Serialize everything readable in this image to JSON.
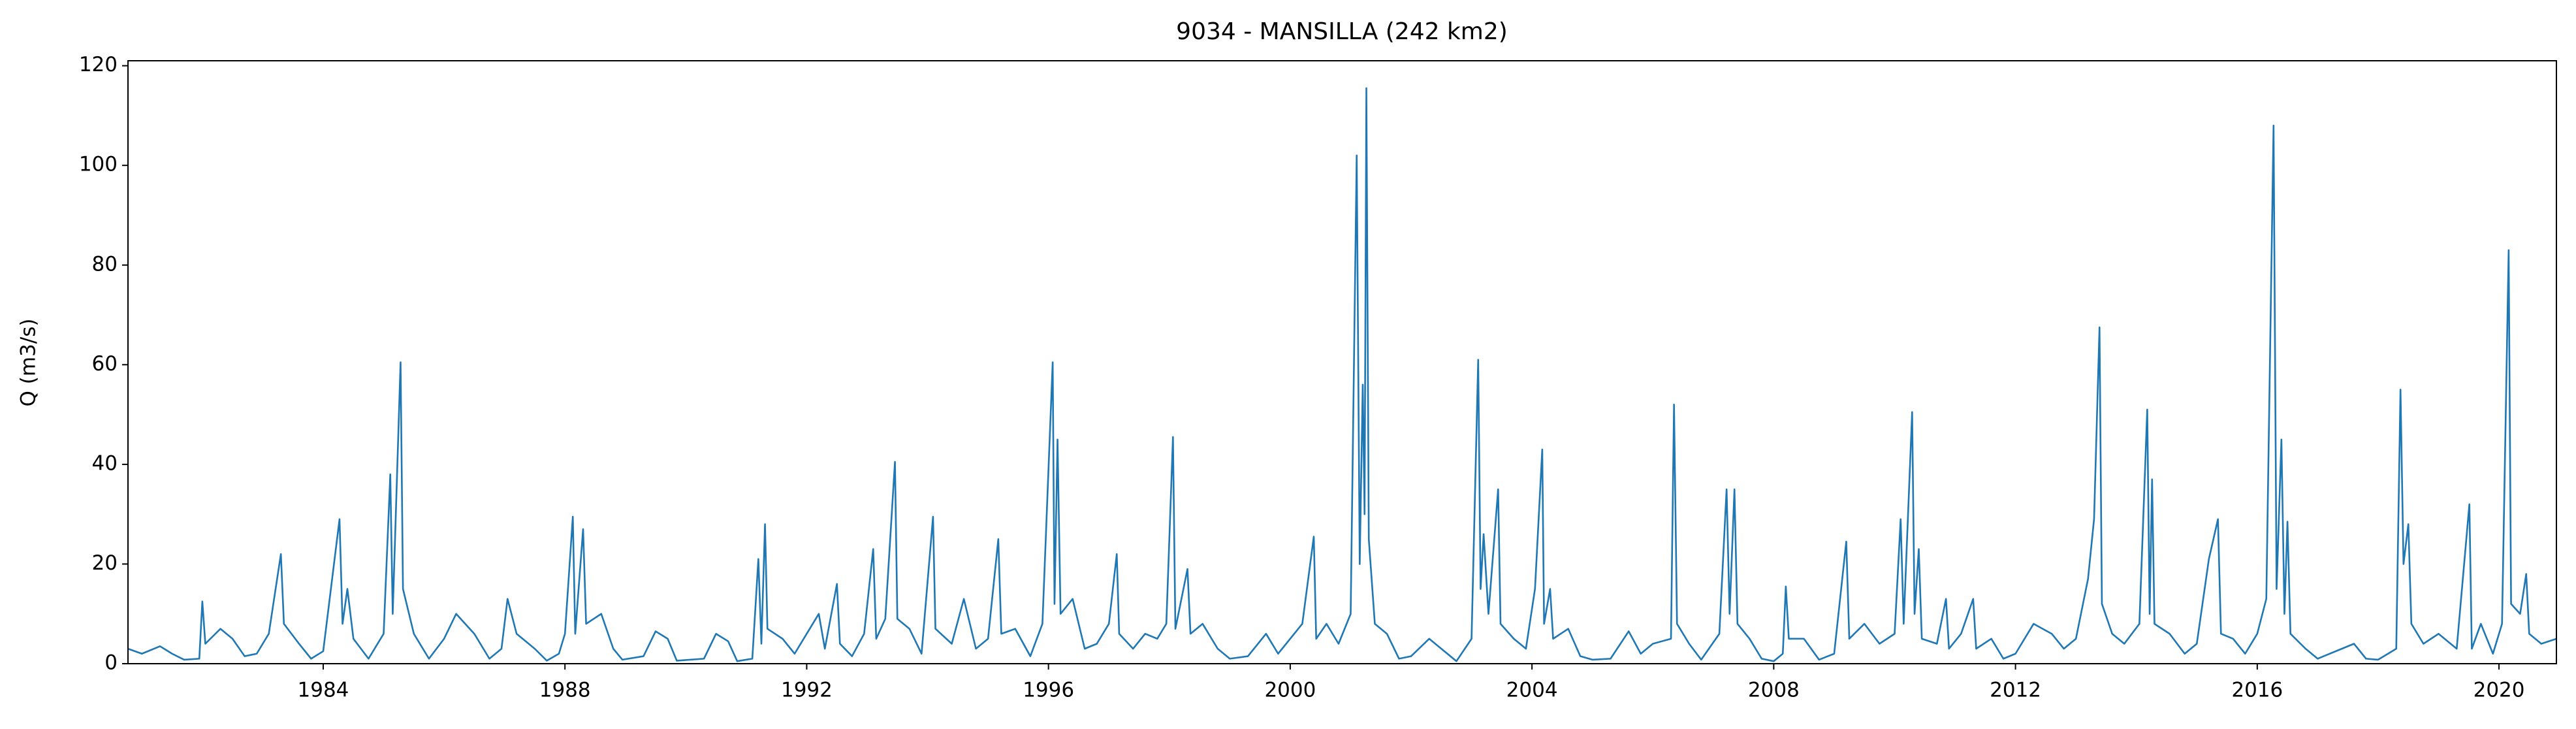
{
  "chart_data": {
    "type": "line",
    "title": "9034 - MANSILLA (242 km2)",
    "y_label": "Q (m3/s)",
    "color": "#1f77b4",
    "x": [
      1980.77,
      1981.0,
      1981.3,
      1981.5,
      1981.7,
      1981.95,
      1982.0,
      1982.05,
      1982.3,
      1982.5,
      1982.7,
      1982.9,
      1983.1,
      1983.3,
      1983.35,
      1983.6,
      1983.8,
      1984.0,
      1984.27,
      1984.32,
      1984.4,
      1984.5,
      1984.75,
      1985.0,
      1985.11,
      1985.15,
      1985.28,
      1985.32,
      1985.5,
      1985.75,
      1986.0,
      1986.2,
      1986.5,
      1986.75,
      1986.95,
      1987.05,
      1987.2,
      1987.5,
      1987.7,
      1987.9,
      1988.0,
      1988.13,
      1988.17,
      1988.3,
      1988.35,
      1988.6,
      1988.8,
      1988.95,
      1989.3,
      1989.5,
      1989.7,
      1989.85,
      1990.3,
      1990.5,
      1990.7,
      1990.85,
      1991.1,
      1991.2,
      1991.25,
      1991.31,
      1991.35,
      1991.6,
      1991.8,
      1992.0,
      1992.2,
      1992.3,
      1992.5,
      1992.55,
      1992.75,
      1992.95,
      1993.1,
      1993.15,
      1993.3,
      1993.46,
      1993.5,
      1993.7,
      1993.9,
      1994.09,
      1994.13,
      1994.4,
      1994.6,
      1994.8,
      1995.0,
      1995.17,
      1995.22,
      1995.45,
      1995.7,
      1995.9,
      1996.07,
      1996.1,
      1996.15,
      1996.2,
      1996.4,
      1996.6,
      1996.8,
      1997.0,
      1997.13,
      1997.17,
      1997.4,
      1997.6,
      1997.8,
      1997.95,
      1998.06,
      1998.1,
      1998.3,
      1998.35,
      1998.55,
      1998.8,
      1999.0,
      1999.3,
      1999.6,
      1999.8,
      2000.0,
      2000.2,
      2000.39,
      2000.43,
      2000.6,
      2000.8,
      2001.0,
      2001.1,
      2001.15,
      2001.2,
      2001.23,
      2001.26,
      2001.3,
      2001.4,
      2001.6,
      2001.8,
      2002.0,
      2002.3,
      2002.5,
      2002.75,
      2003.0,
      2003.11,
      2003.15,
      2003.2,
      2003.28,
      2003.44,
      2003.48,
      2003.7,
      2003.9,
      2004.05,
      2004.17,
      2004.2,
      2004.3,
      2004.35,
      2004.6,
      2004.8,
      2005.0,
      2005.3,
      2005.6,
      2005.8,
      2006.0,
      2006.3,
      2006.35,
      2006.4,
      2006.6,
      2006.8,
      2007.1,
      2007.22,
      2007.27,
      2007.35,
      2007.4,
      2007.6,
      2007.8,
      2008.0,
      2008.15,
      2008.2,
      2008.25,
      2008.5,
      2008.75,
      2009.0,
      2009.2,
      2009.25,
      2009.5,
      2009.75,
      2010.0,
      2010.1,
      2010.15,
      2010.29,
      2010.33,
      2010.4,
      2010.45,
      2010.7,
      2010.85,
      2010.9,
      2011.1,
      2011.3,
      2011.35,
      2011.6,
      2011.8,
      2012.0,
      2012.3,
      2012.6,
      2012.8,
      2013.0,
      2013.2,
      2013.3,
      2013.39,
      2013.43,
      2013.6,
      2013.8,
      2014.05,
      2014.18,
      2014.22,
      2014.26,
      2014.3,
      2014.55,
      2014.8,
      2015.0,
      2015.2,
      2015.35,
      2015.4,
      2015.6,
      2015.8,
      2016.0,
      2016.15,
      2016.27,
      2016.32,
      2016.4,
      2016.45,
      2016.5,
      2016.55,
      2016.8,
      2017.0,
      2017.4,
      2017.6,
      2017.8,
      2018.0,
      2018.3,
      2018.37,
      2018.42,
      2018.5,
      2018.55,
      2018.75,
      2019.0,
      2019.3,
      2019.51,
      2019.55,
      2019.7,
      2019.9,
      2020.05,
      2020.16,
      2020.2,
      2020.35,
      2020.45,
      2020.5,
      2020.7,
      2020.95
    ],
    "values": [
      3,
      2,
      3.5,
      2,
      0.8,
      1,
      12.5,
      4,
      7,
      5,
      1.5,
      2,
      6,
      22,
      8,
      4,
      1,
      2.5,
      29,
      8,
      15,
      5,
      1,
      6,
      38,
      10,
      60.5,
      15,
      6,
      1,
      5,
      10,
      6,
      1,
      3,
      13,
      6,
      3,
      0.6,
      2,
      6,
      29.5,
      6,
      27,
      8,
      10,
      3,
      0.8,
      1.5,
      6.5,
      5,
      0.6,
      1,
      6,
      4.5,
      0.5,
      1,
      21,
      4,
      28,
      7,
      5,
      2,
      6,
      10,
      3,
      16,
      4,
      1.5,
      6,
      23,
      5,
      9,
      40.5,
      9,
      7,
      2,
      29.5,
      7,
      4,
      13,
      3,
      5,
      25,
      6,
      7,
      1.5,
      8,
      60.5,
      12,
      45,
      10,
      13,
      3,
      4,
      8,
      22,
      6,
      3,
      6,
      5,
      8,
      45.5,
      7,
      19,
      6,
      8,
      3,
      1,
      1.5,
      6,
      2,
      5,
      8,
      25.5,
      5,
      8,
      4,
      10,
      102,
      20,
      56,
      30,
      115.5,
      25,
      8,
      6,
      1,
      1.5,
      5,
      3,
      0.5,
      5,
      61,
      15,
      26,
      10,
      35,
      8,
      5,
      3,
      15,
      43,
      8,
      15,
      5,
      7,
      1.5,
      0.8,
      1,
      6.5,
      2,
      4,
      5,
      52,
      8,
      4,
      0.8,
      6,
      35,
      10,
      35,
      8,
      5,
      1,
      0.5,
      2,
      15.5,
      5,
      5,
      0.8,
      2,
      24.5,
      5,
      8,
      4,
      6,
      29,
      8,
      50.5,
      10,
      23,
      5,
      4,
      13,
      3,
      6,
      13,
      3,
      5,
      1,
      2,
      8,
      6,
      3,
      5,
      17,
      29,
      67.5,
      12,
      6,
      4,
      8,
      51,
      10,
      37,
      8,
      6,
      2,
      4,
      21,
      29,
      6,
      5,
      2,
      6,
      13,
      108,
      15,
      45,
      10,
      28.5,
      6,
      3,
      1,
      3,
      4,
      1,
      0.8,
      3,
      55,
      20,
      28,
      8,
      4,
      6,
      3,
      32,
      3,
      8,
      2,
      8,
      83,
      12,
      10,
      18,
      6,
      4,
      5
    ],
    "xlim": [
      1980.77,
      2020.95
    ],
    "ylim": [
      0,
      121
    ],
    "xticks": [
      1984,
      1988,
      1992,
      1996,
      2000,
      2004,
      2008,
      2012,
      2016,
      2020
    ],
    "yticks": [
      0,
      20,
      40,
      60,
      80,
      100,
      120
    ]
  }
}
